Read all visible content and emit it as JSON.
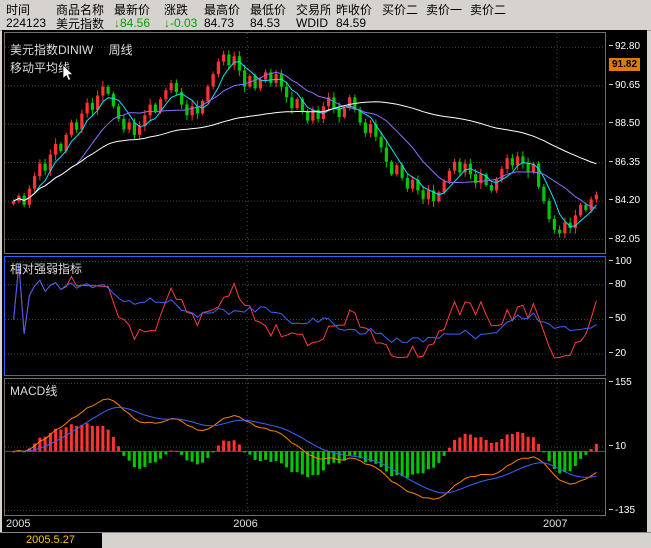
{
  "quote_table": {
    "widths": [
      50,
      58,
      50,
      40,
      46,
      46,
      40,
      46,
      44,
      44,
      44
    ],
    "columns": [
      {
        "key": "time",
        "label": "时间",
        "value": "224123"
      },
      {
        "key": "name",
        "label": "商品名称",
        "value": "美元指数"
      },
      {
        "key": "last",
        "label": "最新价",
        "value": "84.56",
        "arrow": "↓",
        "color": "down"
      },
      {
        "key": "change",
        "label": "涨跌",
        "value": "-0.03",
        "arrow": "↓",
        "color": "down"
      },
      {
        "key": "high",
        "label": "最高价",
        "value": "84.73"
      },
      {
        "key": "low",
        "label": "最低价",
        "value": "84.53"
      },
      {
        "key": "exchange",
        "label": "交易所",
        "value": "WDID"
      },
      {
        "key": "prev_close",
        "label": "昨收价",
        "value": "84.59"
      },
      {
        "key": "bid2",
        "label": "买价二",
        "value": ""
      },
      {
        "key": "ask1",
        "label": "卖价一",
        "value": ""
      },
      {
        "key": "ask2",
        "label": "卖价二",
        "value": ""
      }
    ]
  },
  "main_chart": {
    "title": "美元指数DINIW",
    "period": "周线",
    "indicator_label": "移动平均线",
    "cursor_tag": "91.82"
  },
  "rsi_panel": {
    "title": "相对强弱指标"
  },
  "macd_panel": {
    "title": "MACD线"
  },
  "x_axis": {
    "labels": [
      "2005",
      "2006",
      "2007"
    ]
  },
  "status_bar": {
    "date": "2005.5.27"
  },
  "colors": {
    "up": "#ff3333",
    "down": "#00c800",
    "ma": [
      "#00e5ff",
      "#8a70ff",
      "#ffffff"
    ],
    "rsi": [
      "#ff3c3c",
      "#3c64ff"
    ],
    "macd_dif": "#ff8200",
    "macd_dea": "#3c64ff",
    "grid": "#464646",
    "panel_border": "#6f6f6f",
    "selected_border": "#2e62ff",
    "tag_bg": "#e07b00",
    "tag_text": "#000000",
    "quote_down_text": "#00a000",
    "status_date": "#ffc800"
  },
  "chart_data": {
    "type": "candlestick",
    "symbol": "美元指数DINIW",
    "period": "周线",
    "closes": [
      84.2,
      84.5,
      84.0,
      84.9,
      85.6,
      86.3,
      85.9,
      86.8,
      87.4,
      87.0,
      87.9,
      88.6,
      88.2,
      89.1,
      89.7,
      89.3,
      90.1,
      90.6,
      90.2,
      89.5,
      88.8,
      88.2,
      88.6,
      87.9,
      88.4,
      89.0,
      89.6,
      89.2,
      89.9,
      90.4,
      90.8,
      90.3,
      89.6,
      89.0,
      89.5,
      89.1,
      89.8,
      90.6,
      91.3,
      92.0,
      92.4,
      91.8,
      92.3,
      91.5,
      90.6,
      91.2,
      90.5,
      91.0,
      91.4,
      90.8,
      91.3,
      90.6,
      90.0,
      89.4,
      89.9,
      89.2,
      88.7,
      89.3,
      88.8,
      89.5,
      90.0,
      89.4,
      88.9,
      89.4,
      90.0,
      89.3,
      88.6,
      88.0,
      88.5,
      87.8,
      87.2,
      86.4,
      85.7,
      86.2,
      85.5,
      84.9,
      85.4,
      84.8,
      84.3,
      84.8,
      84.2,
      84.7,
      85.3,
      85.9,
      86.4,
      85.8,
      86.3,
      85.7,
      85.2,
      85.7,
      85.1,
      84.8,
      85.4,
      86.0,
      86.6,
      86.2,
      86.7,
      86.3,
      85.8,
      86.3,
      85.0,
      84.2,
      83.2,
      82.6,
      82.4,
      83.0,
      82.7,
      83.4,
      84.0,
      83.7,
      84.3,
      84.56
    ],
    "year_line_indices": [
      45,
      104
    ],
    "price_axis": {
      "ticks": [
        "92.80",
        "90.65",
        "88.50",
        "86.35",
        "84.20",
        "82.05"
      ],
      "max": 93.6,
      "min": 81.3
    },
    "ma_periods": [
      5,
      13,
      60
    ],
    "rsi": {
      "ticks": [
        "100",
        "80",
        "50",
        "20"
      ],
      "periods": [
        9,
        24
      ],
      "max": 104,
      "min": 2
    },
    "macd": {
      "ticks": [
        "155",
        "10",
        "-135"
      ],
      "params": [
        12,
        26,
        9
      ],
      "scale": 80,
      "max": 165,
      "min": -145
    }
  }
}
